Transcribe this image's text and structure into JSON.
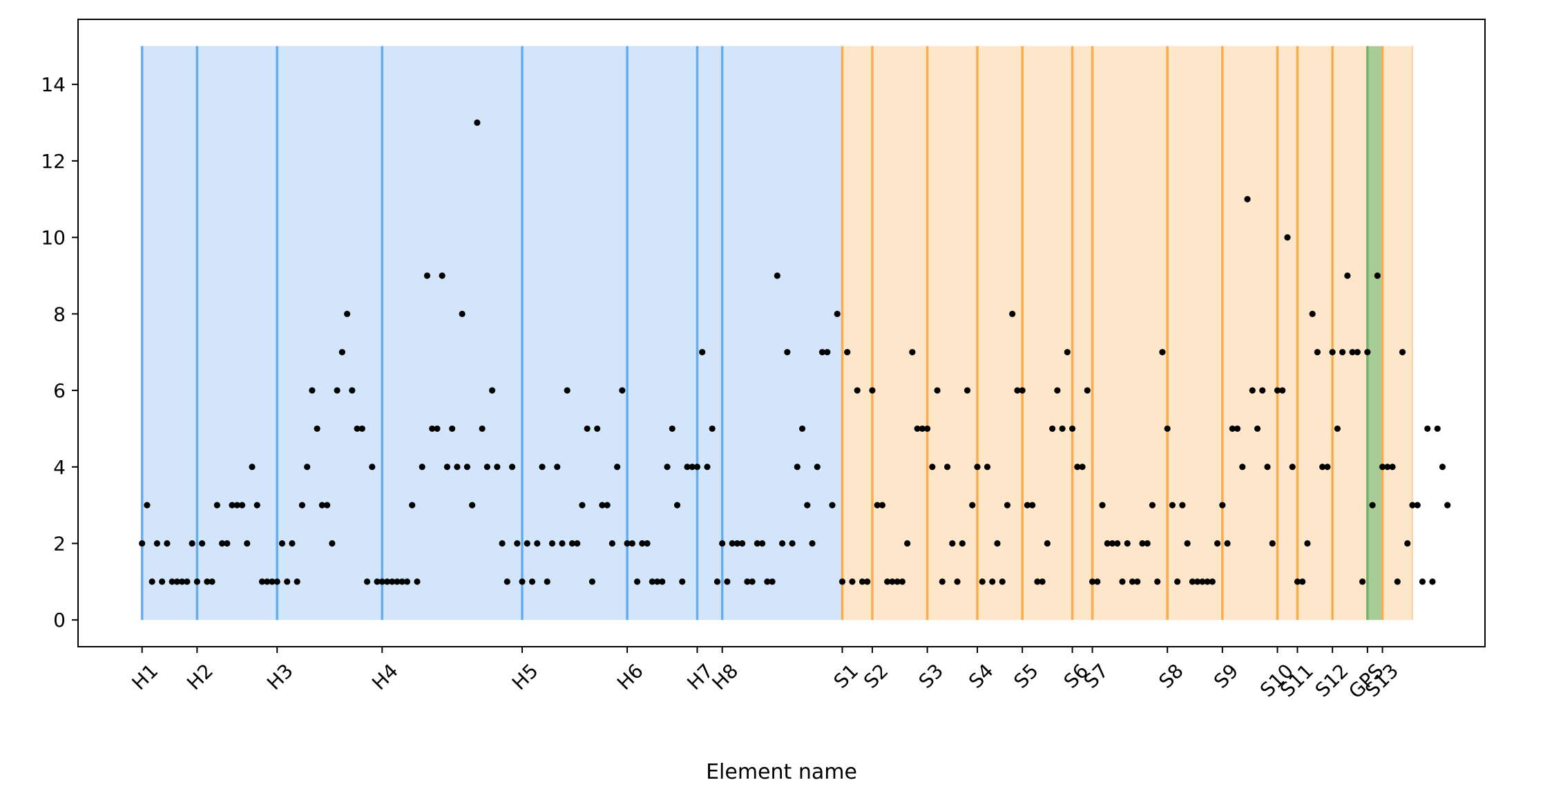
{
  "chart_data": {
    "type": "scatter",
    "title": "",
    "xlabel": "Element name",
    "ylabel": "",
    "ylim": [
      -0.7,
      15.7
    ],
    "yticks": [
      0,
      2,
      4,
      6,
      8,
      10,
      12,
      14
    ],
    "grid": false,
    "legend": "none",
    "x_range": [
      -12.8,
      268.5
    ],
    "boundaries": [
      {
        "name": "H1",
        "x": 0,
        "group": "H"
      },
      {
        "name": "H2",
        "x": 11,
        "group": "H"
      },
      {
        "name": "H3",
        "x": 27,
        "group": "H"
      },
      {
        "name": "H4",
        "x": 48,
        "group": "H"
      },
      {
        "name": "H5",
        "x": 76,
        "group": "H"
      },
      {
        "name": "H6",
        "x": 97,
        "group": "H"
      },
      {
        "name": "H7",
        "x": 111,
        "group": "H"
      },
      {
        "name": "H8",
        "x": 116,
        "group": "H"
      },
      {
        "name": "S1",
        "x": 140,
        "group": "S"
      },
      {
        "name": "S2",
        "x": 146,
        "group": "S"
      },
      {
        "name": "S3",
        "x": 157,
        "group": "S"
      },
      {
        "name": "S4",
        "x": 167,
        "group": "S"
      },
      {
        "name": "S5",
        "x": 176,
        "group": "S"
      },
      {
        "name": "S6",
        "x": 186,
        "group": "S"
      },
      {
        "name": "S7",
        "x": 190,
        "group": "S"
      },
      {
        "name": "S8",
        "x": 205,
        "group": "S"
      },
      {
        "name": "S9",
        "x": 216,
        "group": "S"
      },
      {
        "name": "S10",
        "x": 227,
        "group": "S"
      },
      {
        "name": "S11",
        "x": 231,
        "group": "S"
      },
      {
        "name": "S12",
        "x": 238,
        "group": "S"
      },
      {
        "name": "GPS",
        "x": 245,
        "group": "G"
      },
      {
        "name": "S13",
        "x": 248,
        "group": "S"
      }
    ],
    "regions": [
      {
        "group": "H",
        "x_start": 0,
        "x_end": 140,
        "y_top": 15,
        "color": "#d2e5fb",
        "line_color": "#64aef0"
      },
      {
        "group": "S",
        "x_start": 140,
        "x_end": 254,
        "y_top": 15,
        "color": "#fee6cb",
        "line_color": "#fbac4e"
      },
      {
        "group": "G",
        "x_start": 245,
        "x_end": 248,
        "y_top": 15,
        "color": "#a8cc98",
        "line_color": "#78b06a"
      }
    ],
    "series": [
      {
        "marker_color": "#000000",
        "y": [
          2,
          3,
          1,
          2,
          1,
          2,
          1,
          1,
          1,
          1,
          2,
          1,
          2,
          1,
          1,
          3,
          2,
          2,
          3,
          3,
          3,
          2,
          4,
          3,
          1,
          1,
          1,
          1,
          2,
          1,
          2,
          1,
          3,
          4,
          6,
          5,
          3,
          3,
          2,
          6,
          7,
          8,
          6,
          5,
          5,
          1,
          4,
          1,
          1,
          1,
          1,
          1,
          1,
          1,
          3,
          1,
          4,
          9,
          5,
          5,
          9,
          4,
          5,
          4,
          8,
          4,
          3,
          13,
          5,
          4,
          6,
          4,
          2,
          1,
          4,
          2,
          1,
          2,
          1,
          2,
          4,
          1,
          2,
          4,
          2,
          6,
          2,
          2,
          3,
          5,
          1,
          5,
          3,
          3,
          2,
          4,
          6,
          2,
          2,
          1,
          2,
          2,
          1,
          1,
          1,
          4,
          5,
          3,
          1,
          4,
          4,
          4,
          7,
          4,
          5,
          1,
          2,
          1,
          2,
          2,
          2,
          1,
          1,
          2,
          2,
          1,
          1,
          9,
          2,
          7,
          2,
          4,
          5,
          3,
          2,
          4,
          7,
          7,
          3,
          8,
          1,
          7,
          1,
          6,
          1,
          1,
          6,
          3,
          3,
          1,
          1,
          1,
          1,
          2,
          7,
          5,
          5,
          5,
          4,
          6,
          1,
          4,
          2,
          1,
          2,
          6,
          3,
          4,
          1,
          4,
          1,
          2,
          1,
          3,
          8,
          6,
          6,
          3,
          3,
          1,
          1,
          2,
          5,
          6,
          5,
          7,
          5,
          4,
          4,
          6,
          1,
          1,
          3,
          2,
          2,
          2,
          1,
          2,
          1,
          1,
          2,
          2,
          3,
          1,
          7,
          5,
          3,
          1,
          3,
          2,
          1,
          1,
          1,
          1,
          1,
          2,
          3,
          2,
          5,
          5,
          4,
          11,
          6,
          5,
          6,
          4,
          2,
          6,
          6,
          10,
          4,
          1,
          1,
          2,
          8,
          7,
          4,
          4,
          7,
          5,
          7,
          9,
          7,
          7,
          1,
          7,
          3,
          9,
          4,
          4,
          4,
          1,
          7,
          2,
          3,
          3,
          1,
          5,
          1,
          5,
          4,
          3
        ]
      }
    ]
  }
}
